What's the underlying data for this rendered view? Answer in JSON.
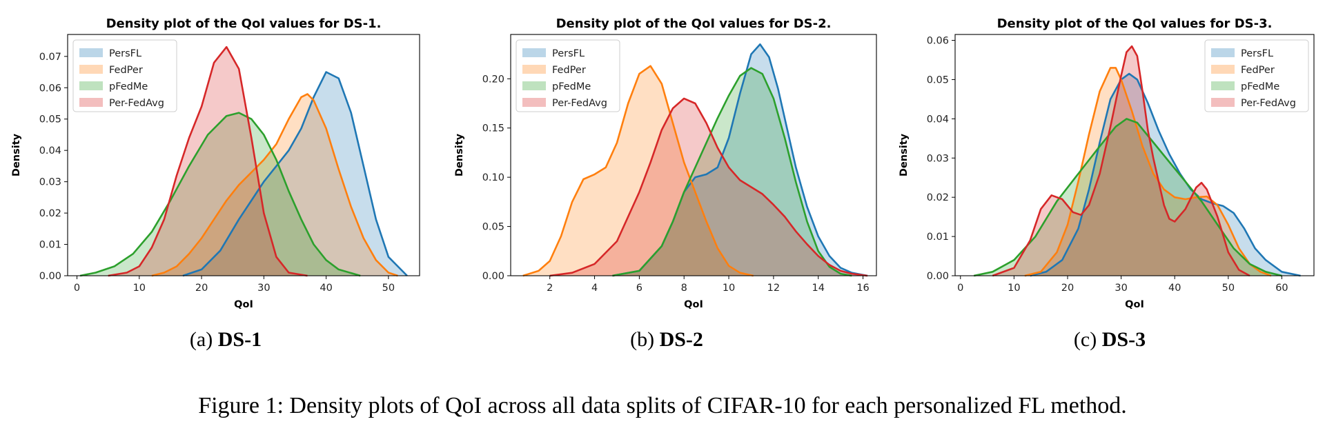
{
  "colors": {
    "series": [
      "#1f77b4",
      "#ff7f0e",
      "#2ca02c",
      "#d62728"
    ]
  },
  "chart_data": [
    {
      "type": "area",
      "title": "Density plot of the QoI values for DS-1.",
      "xlabel": "QoI",
      "ylabel": "Density",
      "xlim": [
        -1.5,
        55
      ],
      "ylim": [
        0,
        0.077
      ],
      "xticks": [
        0,
        10,
        20,
        30,
        40,
        50
      ],
      "yticks": [
        0.0,
        0.01,
        0.02,
        0.03,
        0.04,
        0.05,
        0.06,
        0.07
      ],
      "ytick_labels": [
        "0.00",
        "0.01",
        "0.02",
        "0.03",
        "0.04",
        "0.05",
        "0.06",
        "0.07"
      ],
      "legend_position": "upper-left",
      "series": [
        {
          "name": "PersFL",
          "x": [
            17,
            20,
            23,
            26,
            28,
            30,
            32,
            34,
            36,
            38,
            40,
            42,
            44,
            46,
            48,
            50,
            53
          ],
          "y": [
            0,
            0.002,
            0.008,
            0.018,
            0.024,
            0.03,
            0.035,
            0.04,
            0.047,
            0.057,
            0.065,
            0.063,
            0.052,
            0.035,
            0.018,
            0.006,
            0
          ]
        },
        {
          "name": "FedPer",
          "x": [
            12,
            14,
            16,
            18,
            20,
            22,
            24,
            26,
            28,
            30,
            32,
            34,
            36,
            37,
            38,
            40,
            42,
            44,
            46,
            48,
            50,
            51.5
          ],
          "y": [
            0,
            0.001,
            0.003,
            0.007,
            0.012,
            0.018,
            0.024,
            0.029,
            0.033,
            0.037,
            0.042,
            0.05,
            0.057,
            0.058,
            0.056,
            0.047,
            0.034,
            0.022,
            0.012,
            0.005,
            0.001,
            0
          ]
        },
        {
          "name": "pFedMe",
          "x": [
            0.5,
            3,
            6,
            9,
            12,
            15,
            18,
            21,
            24,
            26,
            28,
            30,
            32,
            34,
            36,
            38,
            40,
            42,
            45.5
          ],
          "y": [
            0,
            0.001,
            0.003,
            0.007,
            0.014,
            0.024,
            0.035,
            0.045,
            0.051,
            0.052,
            0.05,
            0.045,
            0.037,
            0.027,
            0.018,
            0.01,
            0.005,
            0.002,
            0
          ]
        },
        {
          "name": "Per-FedAvg",
          "x": [
            5,
            8,
            10,
            12,
            14,
            16,
            18,
            20,
            22,
            24,
            26,
            28,
            30,
            32,
            34,
            37
          ],
          "y": [
            0,
            0.001,
            0.003,
            0.009,
            0.018,
            0.032,
            0.044,
            0.054,
            0.068,
            0.073,
            0.066,
            0.044,
            0.02,
            0.006,
            0.001,
            0
          ]
        }
      ]
    },
    {
      "type": "area",
      "title": "Density plot of the QoI values for DS-2.",
      "xlabel": "QoI",
      "ylabel": "Density",
      "xlim": [
        0.25,
        16.6
      ],
      "ylim": [
        0,
        0.245
      ],
      "xticks": [
        2,
        4,
        6,
        8,
        10,
        12,
        14,
        16
      ],
      "yticks": [
        0.0,
        0.05,
        0.1,
        0.15,
        0.2
      ],
      "ytick_labels": [
        "0.00",
        "0.05",
        "0.10",
        "0.15",
        "0.20"
      ],
      "legend_position": "upper-left",
      "series": [
        {
          "name": "PersFL",
          "x": [
            4.8,
            6,
            7,
            7.5,
            8,
            8.5,
            9,
            9.5,
            10,
            10.5,
            11,
            11.4,
            11.8,
            12.2,
            12.6,
            13,
            13.5,
            14,
            14.5,
            15,
            15.5,
            16.2
          ],
          "y": [
            0,
            0.005,
            0.03,
            0.055,
            0.085,
            0.1,
            0.103,
            0.11,
            0.14,
            0.185,
            0.225,
            0.235,
            0.222,
            0.19,
            0.15,
            0.11,
            0.07,
            0.04,
            0.02,
            0.008,
            0.003,
            0
          ]
        },
        {
          "name": "FedPer",
          "x": [
            0.8,
            1.5,
            2,
            2.5,
            3,
            3.5,
            4,
            4.5,
            5,
            5.5,
            6,
            6.5,
            7,
            7.5,
            8,
            8.5,
            9,
            9.5,
            10,
            10.5,
            11.1
          ],
          "y": [
            0,
            0.005,
            0.015,
            0.04,
            0.075,
            0.098,
            0.103,
            0.11,
            0.135,
            0.175,
            0.205,
            0.213,
            0.195,
            0.155,
            0.115,
            0.085,
            0.055,
            0.028,
            0.01,
            0.003,
            0
          ]
        },
        {
          "name": "pFedMe",
          "x": [
            4.8,
            6,
            7,
            7.5,
            8,
            8.5,
            9,
            9.5,
            10,
            10.5,
            11,
            11.5,
            12,
            12.5,
            13,
            13.5,
            14,
            14.5,
            15,
            15.5
          ],
          "y": [
            0,
            0.005,
            0.03,
            0.055,
            0.085,
            0.11,
            0.135,
            0.16,
            0.183,
            0.203,
            0.211,
            0.205,
            0.18,
            0.14,
            0.095,
            0.055,
            0.025,
            0.009,
            0.002,
            0
          ]
        },
        {
          "name": "Per-FedAvg",
          "x": [
            2,
            3,
            4,
            5,
            6,
            6.5,
            7,
            7.5,
            8,
            8.5,
            9,
            9.5,
            10,
            10.5,
            11,
            11.5,
            12,
            12.5,
            13,
            13.5,
            14,
            14.5,
            15,
            15.5,
            16.2
          ],
          "y": [
            0,
            0.003,
            0.012,
            0.035,
            0.085,
            0.115,
            0.148,
            0.17,
            0.18,
            0.175,
            0.155,
            0.13,
            0.11,
            0.097,
            0.09,
            0.083,
            0.072,
            0.06,
            0.045,
            0.032,
            0.02,
            0.011,
            0.005,
            0.002,
            0
          ]
        }
      ]
    },
    {
      "type": "area",
      "title": "Density plot of the QoI values for DS-3.",
      "xlabel": "QoI",
      "ylabel": "Density",
      "xlim": [
        -1,
        66
      ],
      "ylim": [
        0,
        0.0615
      ],
      "xticks": [
        0,
        10,
        20,
        30,
        40,
        50,
        60
      ],
      "yticks": [
        0.0,
        0.01,
        0.02,
        0.03,
        0.04,
        0.05,
        0.06
      ],
      "ytick_labels": [
        "0.00",
        "0.01",
        "0.02",
        "0.03",
        "0.04",
        "0.05",
        "0.06"
      ],
      "legend_position": "upper-right",
      "series": [
        {
          "name": "PersFL",
          "x": [
            13,
            16,
            19,
            22,
            24,
            26,
            28,
            30,
            31.5,
            33,
            35,
            37,
            39,
            41,
            43,
            45,
            47,
            49,
            51,
            53,
            55,
            57,
            60,
            63.5
          ],
          "y": [
            0,
            0.001,
            0.004,
            0.012,
            0.022,
            0.034,
            0.045,
            0.05,
            0.0515,
            0.05,
            0.044,
            0.037,
            0.031,
            0.026,
            0.022,
            0.0195,
            0.0185,
            0.0178,
            0.016,
            0.012,
            0.007,
            0.004,
            0.001,
            0
          ]
        },
        {
          "name": "FedPer",
          "x": [
            12,
            15,
            18,
            20,
            22,
            24,
            26,
            28,
            29,
            30,
            32,
            34,
            36,
            38,
            40,
            42,
            44,
            46,
            48,
            50,
            52,
            54,
            56,
            58
          ],
          "y": [
            0,
            0.001,
            0.006,
            0.013,
            0.024,
            0.036,
            0.047,
            0.053,
            0.053,
            0.05,
            0.042,
            0.033,
            0.026,
            0.022,
            0.02,
            0.0195,
            0.02,
            0.0202,
            0.018,
            0.013,
            0.007,
            0.003,
            0.001,
            0
          ]
        },
        {
          "name": "pFedMe",
          "x": [
            2.5,
            6,
            10,
            14,
            18,
            22,
            26,
            29,
            31,
            33,
            36,
            39,
            42,
            45,
            48,
            51,
            54,
            57,
            60
          ],
          "y": [
            0,
            0.001,
            0.004,
            0.01,
            0.019,
            0.026,
            0.033,
            0.038,
            0.04,
            0.039,
            0.034,
            0.029,
            0.024,
            0.019,
            0.013,
            0.007,
            0.003,
            0.001,
            0
          ]
        },
        {
          "name": "Per-FedAvg",
          "x": [
            6,
            10,
            13,
            15,
            17,
            19,
            21,
            22.5,
            24,
            26,
            28,
            30,
            31,
            32,
            33,
            34,
            35,
            36,
            37,
            38,
            39,
            40,
            42,
            44,
            45,
            46,
            48,
            50,
            52,
            54
          ],
          "y": [
            0,
            0.002,
            0.009,
            0.017,
            0.0205,
            0.0195,
            0.0162,
            0.0155,
            0.018,
            0.026,
            0.038,
            0.051,
            0.057,
            0.0585,
            0.056,
            0.047,
            0.037,
            0.03,
            0.024,
            0.018,
            0.0145,
            0.0138,
            0.017,
            0.0225,
            0.0237,
            0.022,
            0.015,
            0.006,
            0.0015,
            0
          ]
        }
      ]
    }
  ],
  "subcaptions": [
    {
      "prefix": "(a)",
      "label": "DS-1"
    },
    {
      "prefix": "(b)",
      "label": "DS-2"
    },
    {
      "prefix": "(c)",
      "label": "DS-3"
    }
  ],
  "caption": {
    "text": "Figure 1: Density plots of QoI across all data splits of CIFAR-10 for each personalized FL method."
  }
}
